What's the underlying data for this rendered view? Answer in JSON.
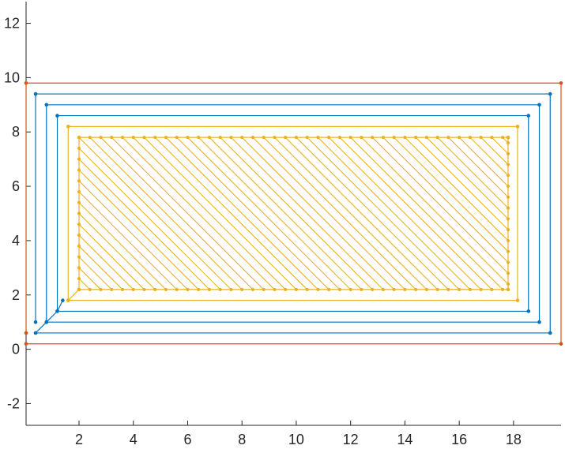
{
  "chart_data": {
    "type": "line",
    "title": "",
    "xlabel": "",
    "ylabel": "",
    "xlim": [
      0.05,
      19.75
    ],
    "ylim": [
      -2.8,
      12.8
    ],
    "xticks": [
      2,
      4,
      6,
      8,
      10,
      12,
      14,
      16,
      18
    ],
    "yticks": [
      -2,
      0,
      2,
      4,
      6,
      8,
      10,
      12
    ],
    "xtick_labels": [
      "2",
      "4",
      "6",
      "8",
      "10",
      "12",
      "14",
      "16",
      "18"
    ],
    "ytick_labels": [
      "-2",
      "0",
      "2",
      "4",
      "6",
      "8",
      "10",
      "12"
    ],
    "grid": false,
    "box": false,
    "colors": {
      "outer": "#D95319",
      "middle": "#0072BD",
      "inner": "#EDB120",
      "axis": "#262626"
    },
    "series": [
      {
        "color_key": "outer",
        "marker": "dot",
        "x": [
          0.05,
          0.05,
          19.75,
          19.75,
          0.05
        ],
        "y": [
          0.6,
          9.8,
          9.8,
          0.2,
          0.2
        ]
      },
      {
        "color_key": "middle",
        "marker": "dot",
        "x": [
          0.4,
          0.4,
          19.35,
          19.35,
          0.4,
          0.8,
          0.8,
          18.95,
          18.95,
          0.8,
          1.2,
          1.2,
          18.55,
          18.55,
          1.2,
          1.4
        ],
        "y": [
          1.0,
          9.4,
          9.4,
          0.6,
          0.6,
          1.0,
          9.0,
          9.0,
          1.0,
          1.0,
          1.4,
          8.6,
          8.6,
          1.4,
          1.4,
          1.8
        ]
      },
      {
        "color_key": "inner",
        "marker": "dot",
        "x": [
          1.6,
          1.6,
          18.15,
          18.15,
          1.6,
          2.0,
          2.0,
          17.8,
          17.8,
          2.0
        ],
        "y": [
          1.8,
          8.2,
          8.2,
          1.8,
          1.8,
          2.2,
          7.8,
          7.8,
          2.2,
          2.2
        ]
      }
    ],
    "hatch": {
      "color_key": "inner",
      "x_min": 2.0,
      "x_max": 17.8,
      "y_min": 2.2,
      "y_max": 7.8,
      "slope": -1,
      "spacing": 0.4,
      "c_start": 4.2,
      "c_end": 25.6
    }
  }
}
